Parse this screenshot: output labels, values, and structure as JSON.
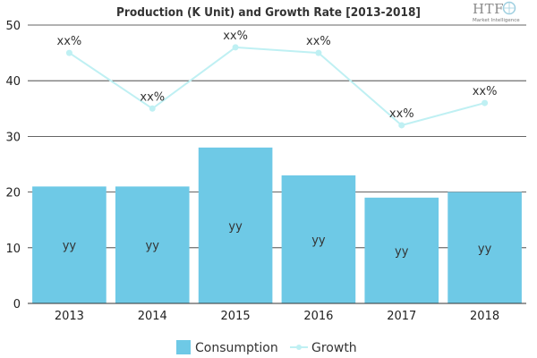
{
  "chart_data": {
    "type": "bar",
    "title": "Production (K Unit) and Growth Rate [2013-2018]",
    "categories": [
      "2013",
      "2014",
      "2015",
      "2016",
      "2017",
      "2018"
    ],
    "series": [
      {
        "name": "Consumption",
        "type": "bar",
        "values": [
          21,
          21,
          28,
          23,
          19,
          20
        ],
        "labels": [
          "yy",
          "yy",
          "yy",
          "yy",
          "yy",
          "yy"
        ],
        "color": "#6ec9e6"
      },
      {
        "name": "Growth",
        "type": "line",
        "values": [
          45,
          35,
          46,
          45,
          32,
          36
        ],
        "labels": [
          "xx%",
          "xx%",
          "xx%",
          "xx%",
          "xx%",
          "xx%"
        ],
        "color": "#bff0f3"
      }
    ],
    "ylim": [
      0,
      50
    ],
    "yticks": [
      0,
      10,
      20,
      30,
      40,
      50
    ],
    "grid": true,
    "legend_position": "bottom",
    "watermark": {
      "brand": "HTF",
      "tagline": "Market Intelligence"
    }
  }
}
